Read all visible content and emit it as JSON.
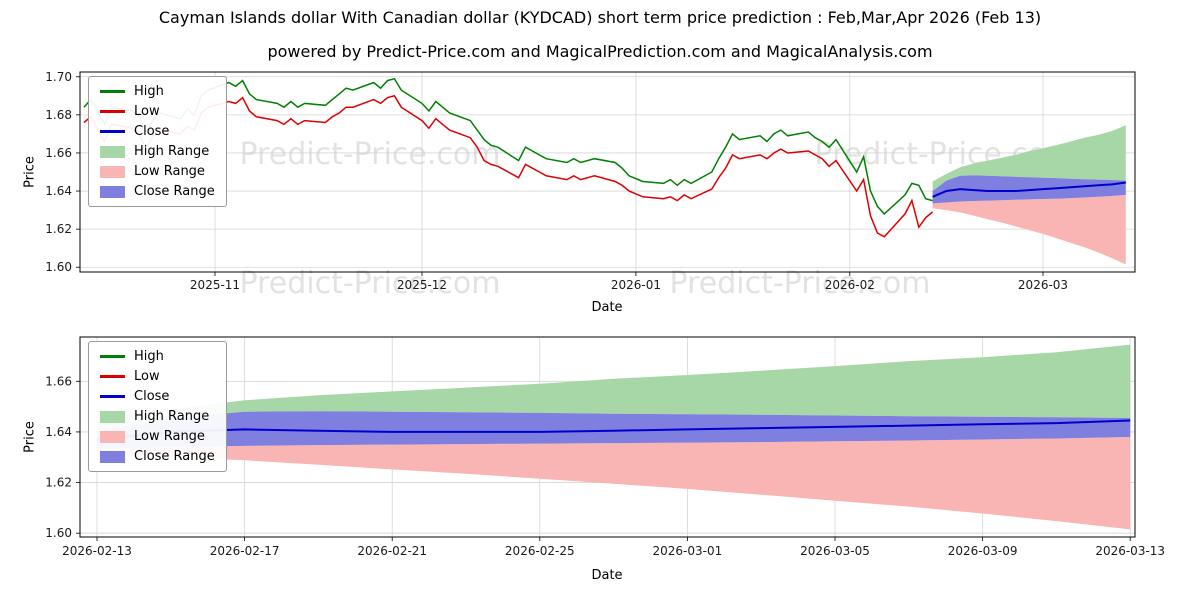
{
  "header": {
    "title": "Cayman Islands dollar With Canadian dollar (KYDCAD) short term price prediction : Feb,Mar,Apr 2026 (Feb 13)",
    "subtitle": "powered by Predict-Price.com and MagicalPrediction.com and MagicalAnalysis.com"
  },
  "watermark": "Predict-Price.com",
  "colors": {
    "high": "#008000",
    "low": "#dd0000",
    "close": "#0000cc",
    "high_range": "#a7d7a7",
    "low_range": "#f9b4b4",
    "close_range": "#7f7fdf",
    "grid": "#d6d6d6",
    "watermark": "#cccccc"
  },
  "legend": [
    {
      "label": "High",
      "type": "line",
      "color_key": "high"
    },
    {
      "label": "Low",
      "type": "line",
      "color_key": "low"
    },
    {
      "label": "Close",
      "type": "line",
      "color_key": "close"
    },
    {
      "label": "High Range",
      "type": "patch",
      "color_key": "high_range"
    },
    {
      "label": "Low Range",
      "type": "patch",
      "color_key": "low_range"
    },
    {
      "label": "Close Range",
      "type": "patch",
      "color_key": "close_range"
    }
  ],
  "chart_data": [
    {
      "type": "line",
      "xlabel": "Date",
      "ylabel": "Price",
      "ylim": [
        1.5975,
        1.7025
      ],
      "yticks": [
        1.6,
        1.62,
        1.64,
        1.66,
        1.68,
        1.7
      ],
      "xticks": [
        "2025-11",
        "2025-12",
        "2026-01",
        "2026-02",
        "2026-03"
      ],
      "xtick_dates": [
        "2025-11-01",
        "2025-12-01",
        "2026-01-01",
        "2026-02-01",
        "2026-03-01"
      ],
      "legend_position": "upper-left",
      "grid": true,
      "historical": {
        "dates": [
          "2025-10-13",
          "2025-10-14",
          "2025-10-15",
          "2025-10-16",
          "2025-10-17",
          "2025-10-20",
          "2025-10-21",
          "2025-10-22",
          "2025-10-23",
          "2025-10-24",
          "2025-10-27",
          "2025-10-28",
          "2025-10-29",
          "2025-10-30",
          "2025-10-31",
          "2025-11-03",
          "2025-11-04",
          "2025-11-05",
          "2025-11-06",
          "2025-11-07",
          "2025-11-10",
          "2025-11-11",
          "2025-11-12",
          "2025-11-13",
          "2025-11-14",
          "2025-11-17",
          "2025-11-18",
          "2025-11-19",
          "2025-11-20",
          "2025-11-21",
          "2025-11-24",
          "2025-11-25",
          "2025-11-26",
          "2025-11-27",
          "2025-11-28",
          "2025-12-01",
          "2025-12-02",
          "2025-12-03",
          "2025-12-04",
          "2025-12-05",
          "2025-12-08",
          "2025-12-09",
          "2025-12-10",
          "2025-12-11",
          "2025-12-12",
          "2025-12-15",
          "2025-12-16",
          "2025-12-17",
          "2025-12-18",
          "2025-12-19",
          "2025-12-22",
          "2025-12-23",
          "2025-12-24",
          "2025-12-26",
          "2025-12-29",
          "2025-12-30",
          "2025-12-31",
          "2026-01-02",
          "2026-01-05",
          "2026-01-06",
          "2026-01-07",
          "2026-01-08",
          "2026-01-09",
          "2026-01-12",
          "2026-01-13",
          "2026-01-14",
          "2026-01-15",
          "2026-01-16",
          "2026-01-19",
          "2026-01-20",
          "2026-01-21",
          "2026-01-22",
          "2026-01-23",
          "2026-01-26",
          "2026-01-27",
          "2026-01-28",
          "2026-01-29",
          "2026-01-30",
          "2026-02-02",
          "2026-02-03",
          "2026-02-04",
          "2026-02-05",
          "2026-02-06",
          "2026-02-09",
          "2026-02-10",
          "2026-02-11",
          "2026-02-12",
          "2026-02-13"
        ],
        "high": [
          1.684,
          1.688,
          1.682,
          1.675,
          1.684,
          1.682,
          1.679,
          1.671,
          1.677,
          1.681,
          1.678,
          1.683,
          1.68,
          1.69,
          1.693,
          1.697,
          1.695,
          1.698,
          1.691,
          1.688,
          1.686,
          1.684,
          1.687,
          1.684,
          1.686,
          1.685,
          1.688,
          1.691,
          1.694,
          1.693,
          1.697,
          1.694,
          1.698,
          1.699,
          1.693,
          1.686,
          1.682,
          1.687,
          1.684,
          1.681,
          1.677,
          1.672,
          1.667,
          1.664,
          1.663,
          1.656,
          1.663,
          1.661,
          1.659,
          1.657,
          1.655,
          1.657,
          1.655,
          1.657,
          1.655,
          1.652,
          1.648,
          1.645,
          1.644,
          1.646,
          1.643,
          1.646,
          1.644,
          1.65,
          1.657,
          1.663,
          1.67,
          1.667,
          1.669,
          1.666,
          1.67,
          1.672,
          1.669,
          1.671,
          1.668,
          1.666,
          1.663,
          1.667,
          1.65,
          1.658,
          1.64,
          1.632,
          1.628,
          1.638,
          1.644,
          1.643,
          1.636,
          1.635
        ],
        "low": [
          1.676,
          1.679,
          1.672,
          1.666,
          1.675,
          1.673,
          1.67,
          1.662,
          1.669,
          1.672,
          1.67,
          1.674,
          1.672,
          1.681,
          1.684,
          1.687,
          1.686,
          1.689,
          1.682,
          1.679,
          1.677,
          1.675,
          1.678,
          1.675,
          1.677,
          1.676,
          1.679,
          1.681,
          1.684,
          1.684,
          1.688,
          1.686,
          1.689,
          1.69,
          1.684,
          1.677,
          1.673,
          1.678,
          1.675,
          1.672,
          1.668,
          1.663,
          1.656,
          1.654,
          1.653,
          1.647,
          1.654,
          1.652,
          1.65,
          1.648,
          1.646,
          1.648,
          1.646,
          1.648,
          1.645,
          1.643,
          1.64,
          1.637,
          1.636,
          1.637,
          1.635,
          1.638,
          1.636,
          1.641,
          1.647,
          1.652,
          1.659,
          1.657,
          1.659,
          1.657,
          1.66,
          1.662,
          1.66,
          1.661,
          1.659,
          1.657,
          1.653,
          1.656,
          1.64,
          1.646,
          1.627,
          1.618,
          1.616,
          1.628,
          1.635,
          1.621,
          1.626,
          1.629
        ]
      }
    },
    {
      "type": "area",
      "xlabel": "Date",
      "ylabel": "Price",
      "ylim": [
        1.5985,
        1.6775
      ],
      "yticks": [
        1.6,
        1.62,
        1.64,
        1.66
      ],
      "xticks": [
        "2026-02-13",
        "2026-02-17",
        "2026-02-21",
        "2026-02-25",
        "2026-03-01",
        "2026-03-05",
        "2026-03-09",
        "2026-03-13"
      ],
      "legend_position": "upper-left",
      "grid": true,
      "forecast": {
        "dates": [
          "2026-02-13",
          "2026-02-15",
          "2026-02-17",
          "2026-02-19",
          "2026-02-21",
          "2026-02-23",
          "2026-02-25",
          "2026-02-27",
          "2026-03-01",
          "2026-03-03",
          "2026-03-05",
          "2026-03-07",
          "2026-03-09",
          "2026-03-11",
          "2026-03-13"
        ],
        "close": [
          1.637,
          1.64,
          1.641,
          1.6405,
          1.64,
          1.64,
          1.64,
          1.6405,
          1.641,
          1.6415,
          1.642,
          1.6425,
          1.643,
          1.6435,
          1.6445
        ],
        "close_upper": [
          1.64,
          1.6455,
          1.648,
          1.6482,
          1.648,
          1.6478,
          1.6475,
          1.6472,
          1.647,
          1.6468,
          1.6465,
          1.6462,
          1.646,
          1.6458,
          1.6455
        ],
        "close_lower": [
          1.6335,
          1.634,
          1.6345,
          1.6348,
          1.635,
          1.6352,
          1.6354,
          1.6356,
          1.6358,
          1.636,
          1.6363,
          1.6366,
          1.637,
          1.6374,
          1.638
        ],
        "high_upper": [
          1.645,
          1.649,
          1.6525,
          1.6545,
          1.656,
          1.6575,
          1.659,
          1.661,
          1.6625,
          1.6642,
          1.666,
          1.668,
          1.6695,
          1.6715,
          1.6745
        ],
        "low_lower": [
          1.631,
          1.63,
          1.6288,
          1.627,
          1.6252,
          1.6235,
          1.6215,
          1.6195,
          1.6175,
          1.6152,
          1.6128,
          1.6105,
          1.6078,
          1.6048,
          1.6015
        ]
      }
    }
  ]
}
